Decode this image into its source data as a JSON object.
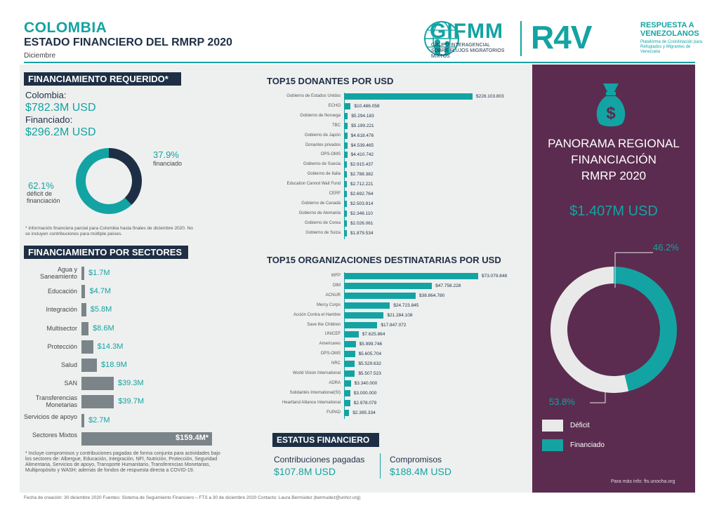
{
  "header": {
    "title": "COLOMBIA",
    "subtitle": "ESTADO FINANCIERO DEL RMRP 2020",
    "month": "Diciembre",
    "gifmm_name": "GIFMM",
    "gifmm_desc": "GRUPO INTERAGENCIAL SOBRE FLUJOS MIGRATORIOS MIXTOS",
    "r4v_logo": "R4V",
    "r4v_title": "RESPUESTA A VENEZOLANOS",
    "r4v_desc": "Plataforma de Coordinación para Refugiados y Migrantes de Venezuela"
  },
  "requerido": {
    "heading": "FINANCIAMIENTO REQUERIDO*",
    "colombia_label": "Colombia:",
    "colombia_value": "$782.3M USD",
    "financiado_label": "Financiado:",
    "financiado_value": "$296.2M USD",
    "pct_financiado": "37.9%",
    "pct_financiado_label": "financiado",
    "pct_deficit": "62.1%",
    "pct_deficit_label": "déficit de financiación",
    "funded_fraction": 0.379,
    "note": "* Información financiera parcial para Colombia hasta finales de diciembre 2020. No se incluyen contribuciones para múltiple países."
  },
  "sectores": {
    "heading": "FINANCIAMIENTO POR SECTORES",
    "items": [
      {
        "label": "Agua y Saneamiento",
        "value": "$1.7M",
        "amount": 1.7
      },
      {
        "label": "Educación",
        "value": "$4.7M",
        "amount": 4.7
      },
      {
        "label": "Integración",
        "value": "$5.8M",
        "amount": 5.8
      },
      {
        "label": "Multisector",
        "value": "$8.6M",
        "amount": 8.6
      },
      {
        "label": "Protección",
        "value": "$14.3M",
        "amount": 14.3
      },
      {
        "label": "Salud",
        "value": "$18.9M",
        "amount": 18.9
      },
      {
        "label": "SAN",
        "value": "$39.3M",
        "amount": 39.3
      },
      {
        "label": "Transferencias Monetarias",
        "value": "$39.7M",
        "amount": 39.7
      },
      {
        "label": "Servicios de apoyo",
        "value": "$2.7M",
        "amount": 2.7
      },
      {
        "label": "Sectores Mixtos",
        "value": "$159.4M*",
        "amount": 159.4
      }
    ],
    "note": "* Incluye compromisos y contribuciones pagadas de forma conjunta para actividades bajo los sectores de: Albergue, Educación, Integración, NFI, Nutrición, Protección, Seguridad Alimentaria, Servicios de apoyo, Transporte Humanitario, Transferencias Monetarias, Multipropósito y WASH; además de fondos de respuesta directa a COVID-19."
  },
  "donantes": {
    "heading": "TOP15 DONANTES POR USD",
    "items": [
      {
        "label": "Gobierno de Estados Unidos",
        "value": "$228.103.803",
        "amount": 228103803
      },
      {
        "label": "ECHO",
        "value": "$10.486.058",
        "amount": 10486058
      },
      {
        "label": "Gobierno de Noruega",
        "value": "$5.294.183",
        "amount": 5294183
      },
      {
        "label": "TBC",
        "value": "$5.199.221",
        "amount": 5199221
      },
      {
        "label": "Gobierno de Japón",
        "value": "$4.618.476",
        "amount": 4618476
      },
      {
        "label": "Donantes privados",
        "value": "$4.539.465",
        "amount": 4539465
      },
      {
        "label": "OPS-OMS",
        "value": "$4.410.742",
        "amount": 4410742
      },
      {
        "label": "Gobierno de Suecia",
        "value": "$2.915.437",
        "amount": 2915437
      },
      {
        "label": "Gobierno de Italia",
        "value": "$2.788.382",
        "amount": 2788382
      },
      {
        "label": "Education Cannot Wait Fund",
        "value": "$2.712.221",
        "amount": 2712221
      },
      {
        "label": "CERF",
        "value": "$2.692.764",
        "amount": 2692764
      },
      {
        "label": "Gobierno de Canadá",
        "value": "$2.503.914",
        "amount": 2503914
      },
      {
        "label": "Gobierno de Alemania",
        "value": "$2.346.110",
        "amount": 2346110
      },
      {
        "label": "Gobierno de Corea",
        "value": "$2.026.061",
        "amount": 2026061
      },
      {
        "label": "Gobierno de Suiza",
        "value": "$1.879.534",
        "amount": 1879534
      }
    ]
  },
  "organizaciones": {
    "heading": "TOP15 ORGANIZACIONES DESTINATARIAS POR USD",
    "items": [
      {
        "label": "WFP",
        "value": "$73.079.848",
        "amount": 73079848
      },
      {
        "label": "OIM",
        "value": "$47.758.228",
        "amount": 47758228
      },
      {
        "label": "ACNUR",
        "value": "$38.864.780",
        "amount": 38864780
      },
      {
        "label": "Mercy Corps",
        "value": "$24.723.845",
        "amount": 24723845
      },
      {
        "label": "Acción Contra el Hambre",
        "value": "$21.284.108",
        "amount": 21284108
      },
      {
        "label": "Save the Children",
        "value": "$17.847.072",
        "amount": 17847072
      },
      {
        "label": "UNICEF",
        "value": "$7.625.864",
        "amount": 7625864
      },
      {
        "label": "Americares",
        "value": "$5.999.746",
        "amount": 5999746
      },
      {
        "label": "OPS-OMS",
        "value": "$5.605.704",
        "amount": 5605704
      },
      {
        "label": "NRC",
        "value": "$5.529.632",
        "amount": 5529632
      },
      {
        "label": "World Vision International",
        "value": "$5.507.523",
        "amount": 5507523
      },
      {
        "label": "ADRA",
        "value": "$3.340.000",
        "amount": 3340000
      },
      {
        "label": "Solidarités International(SI)",
        "value": "$3.000.000",
        "amount": 3000000
      },
      {
        "label": "Heartland Alliance International",
        "value": "$2.978.079",
        "amount": 2978079
      },
      {
        "label": "FUPAD",
        "value": "$2.395.334",
        "amount": 2395334
      }
    ]
  },
  "estatus": {
    "heading": "ESTATUS FINANCIERO",
    "paid_label": "Contribuciones pagadas",
    "paid_value": "$107.8M USD",
    "commit_label": "Compromisos",
    "commit_value": "$188.4M USD"
  },
  "regional": {
    "title_line1": "PANORAMA REGIONAL",
    "title_line2": "FINANCIACIÓN",
    "title_line3": "RMRP 2020",
    "value": "$1.407M USD",
    "pct_financiado": "46.2%",
    "pct_deficit": "53.8%",
    "funded_fraction": 0.462,
    "legend_deficit": "Déficit",
    "legend_financiado": "Financiado",
    "more_info": "Para más info: fts.unocha.org",
    "colors": {
      "deficit": "#e9e9e9",
      "financiado": "#14a3a3",
      "panel": "#5b2c4f"
    }
  },
  "footer": {
    "text": "Fecha de creación: 30 diciembre 2020    Fuentes: Sistema de Seguimiento Financiero – FTS a 30 de diciembre 2020    Contacto: Laura Bermúdez (bermudez@unhcr.org)"
  }
}
